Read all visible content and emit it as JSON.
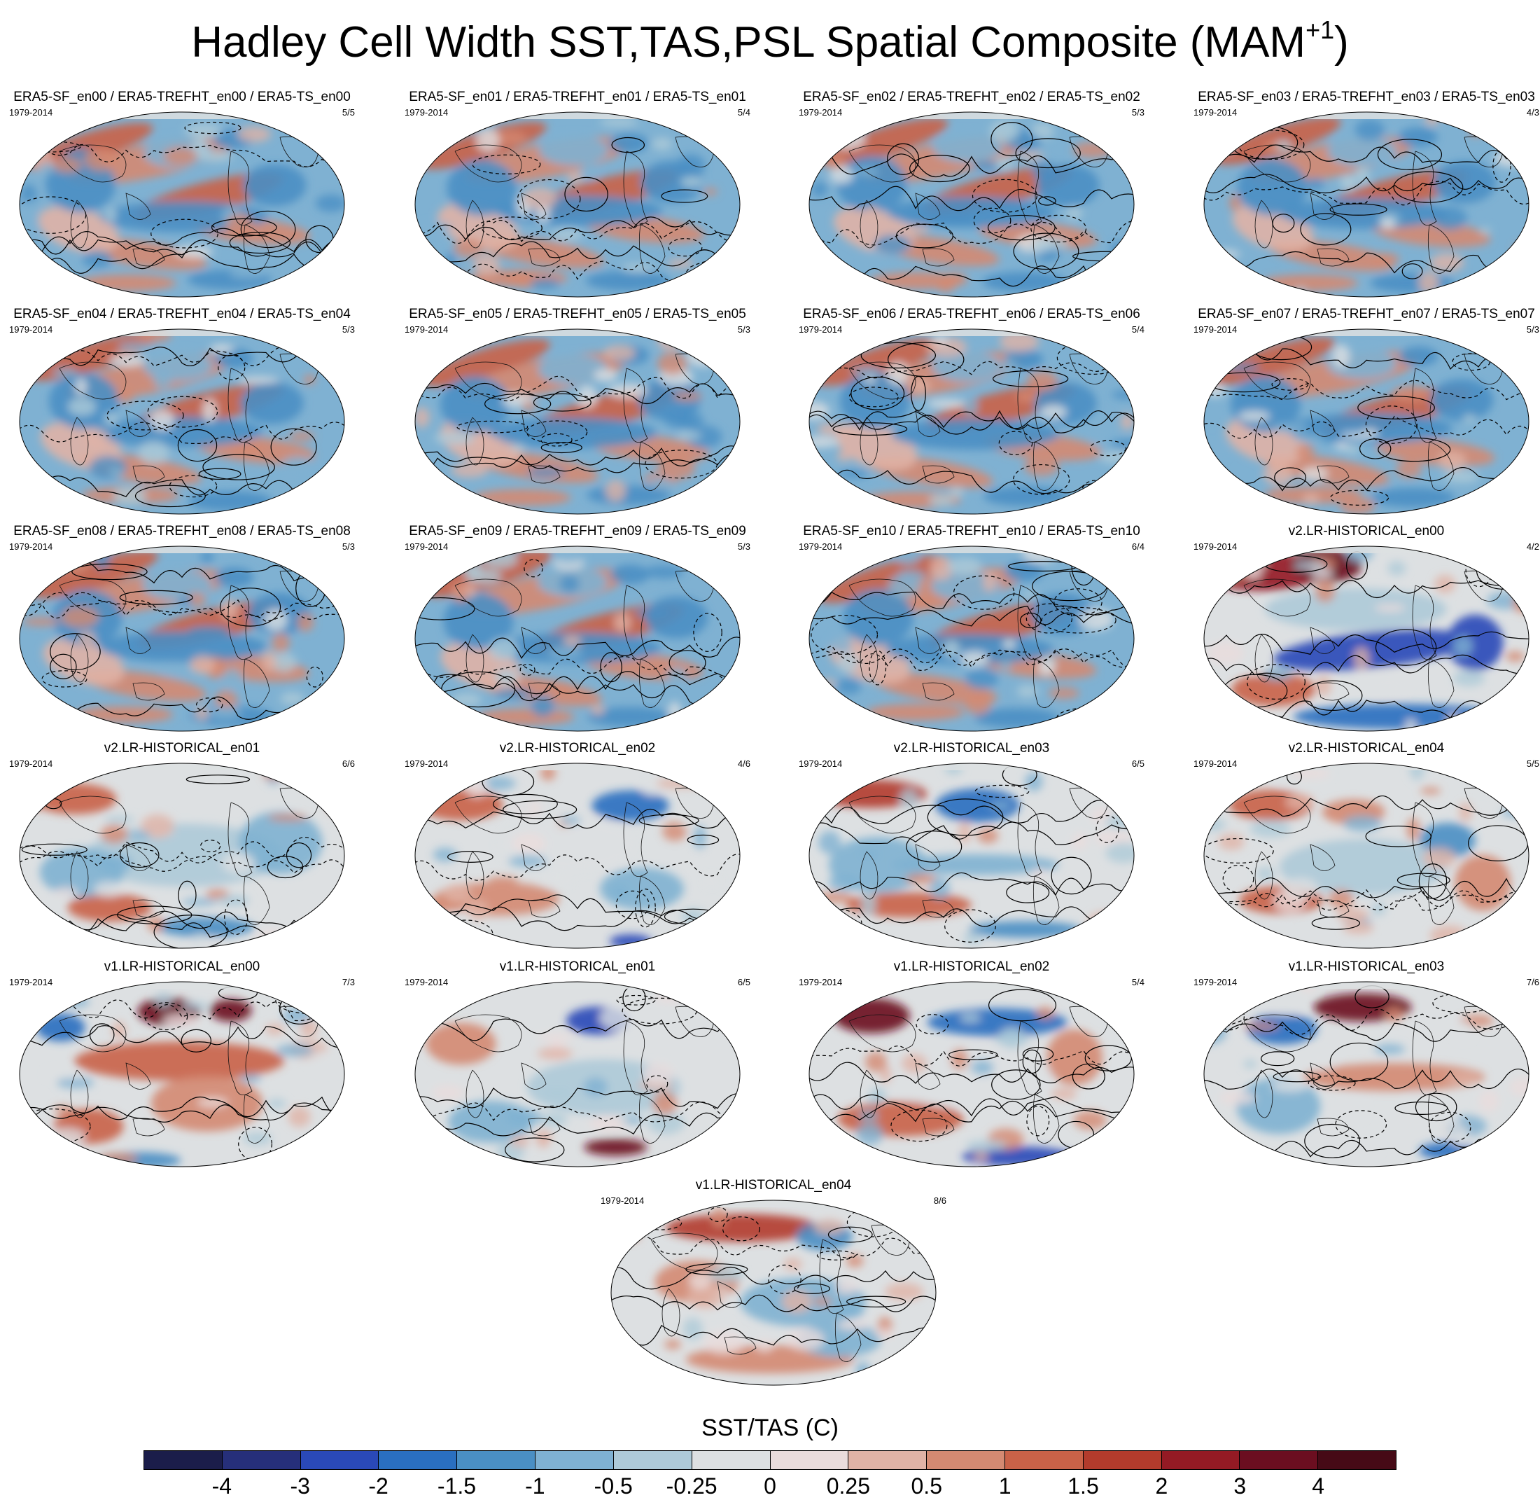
{
  "title": {
    "text": "Hadley Cell Width SST,TAS,PSL Spatial Composite (MAM",
    "sup": "+1",
    "tail": ")"
  },
  "colorbar": {
    "title": "SST/TAS (C)",
    "labels": [
      "-4",
      "-3",
      "-2",
      "-1.5",
      "-1",
      "-0.5",
      "-0.25",
      "0",
      "0.25",
      "0.5",
      "1",
      "1.5",
      "2",
      "3",
      "4"
    ],
    "colors": [
      "#1b1d4a",
      "#262f7a",
      "#2a49b8",
      "#2a6fc0",
      "#4a8fc4",
      "#7fb1d2",
      "#aecad8",
      "#dde0e2",
      "#eadcdc",
      "#e0b3a6",
      "#d48a72",
      "#c96248",
      "#b33b2c",
      "#941a24",
      "#6b0e20",
      "#460a16"
    ]
  },
  "panels": [
    {
      "title": "ERA5-SF_en00 / ERA5-TREFHT_en00 / ERA5-TS_en00",
      "period": "1979-2014",
      "count": "5/5",
      "style": "era5"
    },
    {
      "title": "ERA5-SF_en01 / ERA5-TREFHT_en01 / ERA5-TS_en01",
      "period": "1979-2014",
      "count": "5/4",
      "style": "era5"
    },
    {
      "title": "ERA5-SF_en02 / ERA5-TREFHT_en02 / ERA5-TS_en02",
      "period": "1979-2014",
      "count": "5/3",
      "style": "era5"
    },
    {
      "title": "ERA5-SF_en03 / ERA5-TREFHT_en03 / ERA5-TS_en03",
      "period": "1979-2014",
      "count": "4/3",
      "style": "era5"
    },
    {
      "title": "ERA5-SF_en04 / ERA5-TREFHT_en04 / ERA5-TS_en04",
      "period": "1979-2014",
      "count": "5/3",
      "style": "era5"
    },
    {
      "title": "ERA5-SF_en05 / ERA5-TREFHT_en05 / ERA5-TS_en05",
      "period": "1979-2014",
      "count": "5/3",
      "style": "era5"
    },
    {
      "title": "ERA5-SF_en06 / ERA5-TREFHT_en06 / ERA5-TS_en06",
      "period": "1979-2014",
      "count": "5/4",
      "style": "era5"
    },
    {
      "title": "ERA5-SF_en07 / ERA5-TREFHT_en07 / ERA5-TS_en07",
      "period": "1979-2014",
      "count": "5/3",
      "style": "era5"
    },
    {
      "title": "ERA5-SF_en08 / ERA5-TREFHT_en08 / ERA5-TS_en08",
      "period": "1979-2014",
      "count": "5/3",
      "style": "era5"
    },
    {
      "title": "ERA5-SF_en09 / ERA5-TREFHT_en09 / ERA5-TS_en09",
      "period": "1979-2014",
      "count": "5/3",
      "style": "era5"
    },
    {
      "title": "ERA5-SF_en10 / ERA5-TREFHT_en10 / ERA5-TS_en10",
      "period": "1979-2014",
      "count": "6/4",
      "style": "era5"
    },
    {
      "title": "v2.LR-HISTORICAL_en00",
      "period": "1979-2014",
      "count": "4/2",
      "style": "v2a"
    },
    {
      "title": "v2.LR-HISTORICAL_en01",
      "period": "1979-2014",
      "count": "6/6",
      "style": "v2b"
    },
    {
      "title": "v2.LR-HISTORICAL_en02",
      "period": "1979-2014",
      "count": "4/6",
      "style": "v2c"
    },
    {
      "title": "v2.LR-HISTORICAL_en03",
      "period": "1979-2014",
      "count": "6/5",
      "style": "v2d"
    },
    {
      "title": "v2.LR-HISTORICAL_en04",
      "period": "1979-2014",
      "count": "5/5",
      "style": "v2e"
    },
    {
      "title": "v1.LR-HISTORICAL_en00",
      "period": "1979-2014",
      "count": "7/3",
      "style": "v1a"
    },
    {
      "title": "v1.LR-HISTORICAL_en01",
      "period": "1979-2014",
      "count": "6/5",
      "style": "v1b"
    },
    {
      "title": "v1.LR-HISTORICAL_en02",
      "period": "1979-2014",
      "count": "5/4",
      "style": "v1c"
    },
    {
      "title": "v1.LR-HISTORICAL_en03",
      "period": "1979-2014",
      "count": "7/6",
      "style": "v1d"
    },
    {
      "title": "v1.LR-HISTORICAL_en04",
      "period": "1979-2014",
      "count": "8/6",
      "style": "v1e"
    }
  ]
}
